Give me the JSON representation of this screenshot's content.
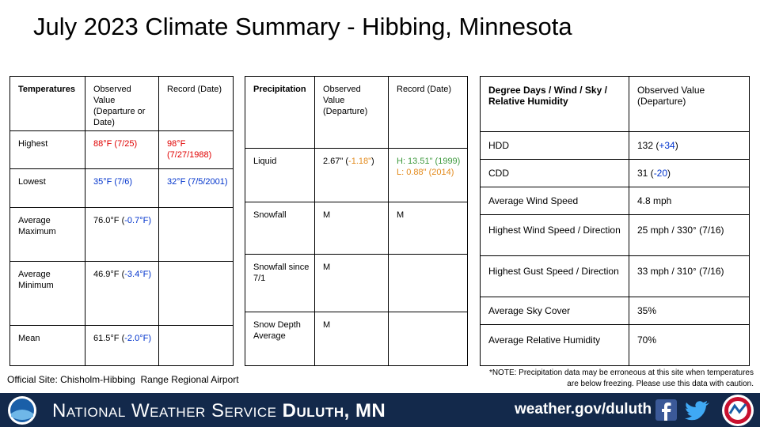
{
  "header": {
    "title": "July 2023 Climate Summary - Hibbing, Minnesota"
  },
  "tables": [
    {
      "header": [
        "Temperatures",
        "Observed Value (Departure or Date)",
        "Record (Date)"
      ],
      "rows": [
        [
          "Highest",
          [
            {
              "text": "88°F (7/25)",
              "color": "#e00000"
            }
          ],
          [
            {
              "text": "98°F (7/27/1988)",
              "color": "#e00000"
            }
          ]
        ],
        [
          "Lowest",
          [
            {
              "text": "35°F (7/6)",
              "color": "#0033cc"
            }
          ],
          [
            {
              "text": "32°F (7/5/2001)",
              "color": "#0033cc"
            }
          ]
        ],
        [
          "Average Maximum",
          [
            {
              "text": "76.0°F (",
              "color": "#000000"
            },
            {
              "text": "-0.7°F)",
              "color": "#0033cc"
            }
          ]
        ],
        [
          "Average Minimum",
          [
            {
              "text": "46.9°F (",
              "color": "#000000"
            },
            {
              "text": "-3.4°F)",
              "color": "#0033cc"
            }
          ]
        ],
        [
          "Mean",
          [
            {
              "text": "61.5°F (",
              "color": "#000000"
            },
            {
              "text": "-2.0°F)",
              "color": "#0033cc"
            }
          ]
        ]
      ]
    },
    {
      "header": [
        "Precipitation",
        "Observed Value (Departure)",
        "Record (Date)"
      ],
      "rows": [
        [
          "Liquid",
          [
            {
              "text": "2.67\" (",
              "color": "#000000"
            },
            {
              "text": "-1.18\"",
              "color": "#e38a1c"
            },
            {
              "text": ")",
              "color": "#000000"
            }
          ],
          [
            {
              "text": "H: 13.51\" (1999)",
              "color": "#3f9a3f"
            },
            {
              "text": "L: 0.88\" (2014)",
              "color": "#e38a1c"
            }
          ]
        ],
        [
          "Snowfall",
          "M",
          "M"
        ],
        [
          "Snowfall since 7/1",
          "M"
        ],
        [
          "Snow Depth Average",
          "M"
        ]
      ]
    },
    {
      "header": [
        "Degree Days / Wind / Sky / Relative Humidity",
        "Observed Value (Departure)"
      ],
      "rows": [
        [
          "HDD",
          [
            {
              "text": "132 (",
              "color": "#000000"
            },
            {
              "text": "+34",
              "color": "#0033cc"
            },
            {
              "text": ")",
              "color": "#000000"
            }
          ]
        ],
        [
          "CDD",
          [
            {
              "text": "31 (",
              "color": "#000000"
            },
            {
              "text": "-20",
              "color": "#0033cc"
            },
            {
              "text": ")",
              "color": "#000000"
            }
          ]
        ],
        [
          "Average Wind Speed",
          "4.8 mph"
        ],
        [
          "Highest Wind Speed / Direction",
          "25 mph / 330° (7/16)"
        ],
        [
          "Highest Gust Speed / Direction",
          "33 mph / 310° (7/16)"
        ],
        [
          "Average Sky Cover",
          "35%"
        ],
        [
          "Average Relative Humidity",
          "70%"
        ]
      ]
    }
  ],
  "footer": {
    "site": "Official Site: Chisholm-Hibbing  Range Regional Airport",
    "note": "*NOTE:  Precipitation data may be erroneous at this site when temperatures are below freezing. Please use this data with caution."
  },
  "banner": {
    "agency": "National Weather Service",
    "office": "Duluth, MN",
    "url": "weather.gov/duluth"
  }
}
